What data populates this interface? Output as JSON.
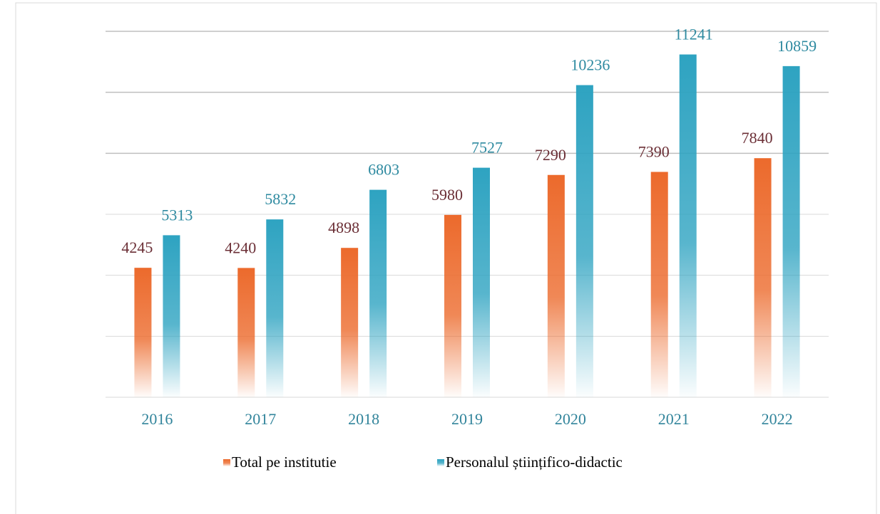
{
  "chart_data": {
    "type": "bar",
    "categories": [
      "2016",
      "2017",
      "2018",
      "2019",
      "2020",
      "2021",
      "2022"
    ],
    "series": [
      {
        "name": "Total pe institutie",
        "color": "#ec6a2c",
        "label_color": "#6b2f36",
        "values": [
          4245,
          4240,
          4898,
          5980,
          7290,
          7390,
          7840
        ]
      },
      {
        "name": "Personalul științifico-didactic",
        "color": "#2ea3c1",
        "label_color": "#2e8aa0",
        "values": [
          5313,
          5832,
          6803,
          7527,
          10236,
          11241,
          10859
        ]
      }
    ],
    "ylim": [
      0,
      12000
    ],
    "yticks": [
      0,
      2000,
      4000,
      6000,
      8000,
      10000,
      12000
    ],
    "grid": true,
    "legend": "bottom"
  }
}
